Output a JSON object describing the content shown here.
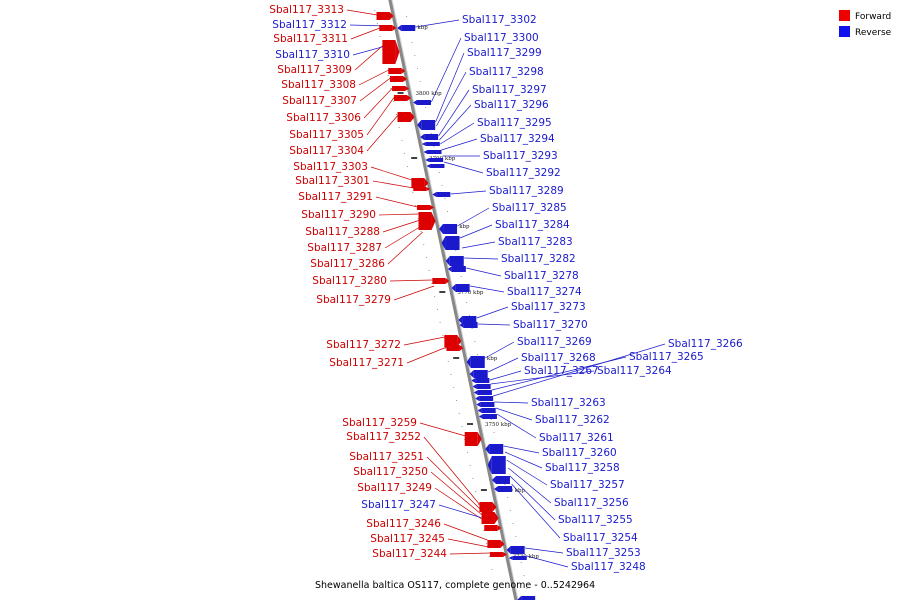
{
  "caption": "Shewanella baltica OS117, complete genome - 0..5242964",
  "legend": {
    "forward": {
      "label": "Forward",
      "color": "#ee0000"
    },
    "reverse": {
      "label": "Reverse",
      "color": "#1111ee"
    }
  },
  "ticks": [
    "3810 kbp",
    "3800 kbp",
    "3790 kbp",
    "3780 kbp",
    "3770 kbp",
    "3760 kbp",
    "3750 kbp",
    "3740 kbp",
    "3730 kbp"
  ],
  "forward_genes": [
    "Sbal117_3313",
    "Sbal117_3311",
    "Sbal117_3309",
    "Sbal117_3308",
    "Sbal117_3307",
    "Sbal117_3306",
    "Sbal117_3305",
    "Sbal117_3304",
    "Sbal117_3303",
    "Sbal117_3301",
    "Sbal117_3291",
    "Sbal117_3290",
    "Sbal117_3288",
    "Sbal117_3287",
    "Sbal117_3286",
    "Sbal117_3280",
    "Sbal117_3279",
    "Sbal117_3272",
    "Sbal117_3271",
    "Sbal117_3259",
    "Sbal117_3252",
    "Sbal117_3251",
    "Sbal117_3250",
    "Sbal117_3249",
    "Sbal117_3246",
    "Sbal117_3245",
    "Sbal117_3244"
  ],
  "reverse_genes_left": [
    "Sbal117_3312",
    "Sbal117_3310",
    "Sbal117_3247"
  ],
  "reverse_genes": [
    "Sbal117_3302",
    "Sbal117_3300",
    "Sbal117_3299",
    "Sbal117_3298",
    "Sbal117_3297",
    "Sbal117_3296",
    "Sbal117_3295",
    "Sbal117_3294",
    "Sbal117_3293",
    "Sbal117_3292",
    "Sbal117_3289",
    "Sbal117_3285",
    "Sbal117_3284",
    "Sbal117_3283",
    "Sbal117_3282",
    "Sbal117_3278",
    "Sbal117_3274",
    "Sbal117_3273",
    "Sbal117_3270",
    "Sbal117_3269",
    "Sbal117_3268",
    "Sbal117_3267",
    "Sbal117_3264",
    "Sbal117_3265",
    "Sbal117_3266",
    "Sbal117_3263",
    "Sbal117_3262",
    "Sbal117_3261",
    "Sbal117_3260",
    "Sbal117_3258",
    "Sbal117_3257",
    "Sbal117_3256",
    "Sbal117_3255",
    "Sbal117_3254",
    "Sbal117_3253",
    "Sbal117_3248"
  ]
}
